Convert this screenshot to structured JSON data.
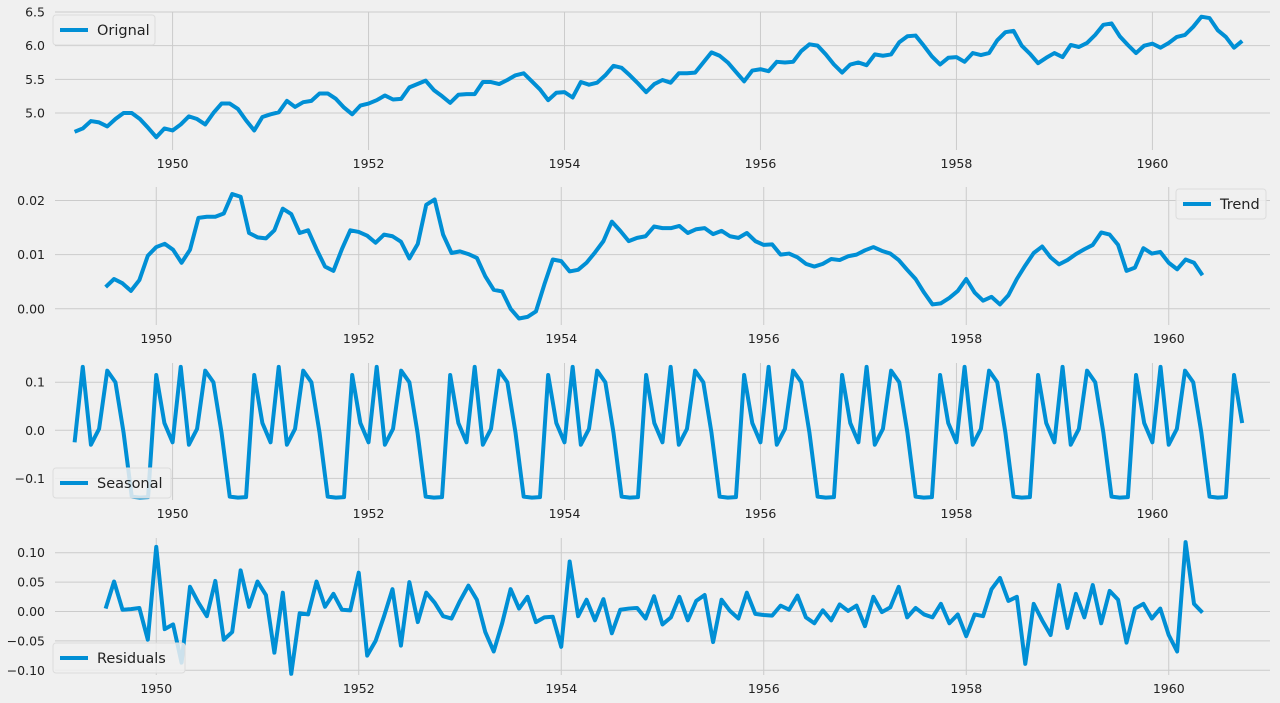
{
  "chart_data": [
    {
      "type": "line",
      "xlim": [
        1948.8,
        1961.2
      ],
      "ylim": [
        4.45,
        6.5
      ],
      "xticks": [
        1950,
        1952,
        1954,
        1956,
        1958,
        1960
      ],
      "xtick_labels": [
        "1950",
        "1952",
        "1954",
        "1956",
        "1958",
        "1960"
      ],
      "yticks": [
        5.0,
        5.5,
        6.0,
        6.5
      ],
      "ytick_labels": [
        "5.0",
        "5.5",
        "6.0",
        "6.5"
      ],
      "grid": true,
      "legend": "upper-left",
      "color": "#008fd5",
      "series": [
        {
          "name": "Orignal",
          "x_start": 1949.0,
          "x_step": 0.08333,
          "values": [
            4.72,
            4.77,
            4.88,
            4.86,
            4.8,
            4.91,
            5.0,
            5.0,
            4.91,
            4.78,
            4.64,
            4.77,
            4.74,
            4.83,
            4.95,
            4.91,
            4.83,
            5.0,
            5.14,
            5.14,
            5.06,
            4.89,
            4.74,
            4.94,
            4.98,
            5.01,
            5.18,
            5.09,
            5.16,
            5.18,
            5.29,
            5.29,
            5.21,
            5.08,
            4.98,
            5.11,
            5.14,
            5.19,
            5.26,
            5.2,
            5.21,
            5.38,
            5.43,
            5.48,
            5.34,
            5.25,
            5.15,
            5.27,
            5.28,
            5.28,
            5.46,
            5.46,
            5.43,
            5.49,
            5.56,
            5.59,
            5.47,
            5.35,
            5.19,
            5.3,
            5.31,
            5.23,
            5.46,
            5.42,
            5.45,
            5.56,
            5.7,
            5.67,
            5.56,
            5.44,
            5.31,
            5.43,
            5.49,
            5.45,
            5.59,
            5.59,
            5.6,
            5.75,
            5.9,
            5.85,
            5.75,
            5.61,
            5.47,
            5.63,
            5.65,
            5.62,
            5.76,
            5.75,
            5.76,
            5.92,
            6.02,
            6.0,
            5.87,
            5.72,
            5.6,
            5.72,
            5.75,
            5.71,
            5.87,
            5.85,
            5.87,
            6.05,
            6.14,
            6.15,
            6.0,
            5.84,
            5.72,
            5.82,
            5.83,
            5.76,
            5.89,
            5.86,
            5.89,
            6.08,
            6.2,
            6.22,
            6.0,
            5.88,
            5.74,
            5.82,
            5.89,
            5.83,
            6.01,
            5.98,
            6.04,
            6.16,
            6.31,
            6.33,
            6.14,
            6.01,
            5.89,
            6.0,
            6.03,
            5.97,
            6.04,
            6.13,
            6.16,
            6.28,
            6.43,
            6.41,
            6.23,
            6.13,
            5.97,
            6.07
          ]
        }
      ]
    },
    {
      "type": "line",
      "xlim": [
        1949.0,
        1961.0
      ],
      "ylim": [
        -0.003,
        0.0225
      ],
      "xticks": [
        1950,
        1952,
        1954,
        1956,
        1958,
        1960
      ],
      "xtick_labels": [
        "1950",
        "1952",
        "1954",
        "1956",
        "1958",
        "1960"
      ],
      "yticks": [
        0.0,
        0.01,
        0.02
      ],
      "ytick_labels": [
        "0.00",
        "0.01",
        "0.02"
      ],
      "grid": true,
      "legend": "upper-right",
      "color": "#008fd5",
      "series": [
        {
          "name": "Trend",
          "x_start": 1949.5,
          "x_step": 0.08333,
          "values": [
            0.004,
            0.0055,
            0.0047,
            0.0033,
            0.0053,
            0.0098,
            0.0114,
            0.012,
            0.0109,
            0.0085,
            0.0109,
            0.0168,
            0.017,
            0.017,
            0.0176,
            0.0212,
            0.0207,
            0.014,
            0.0132,
            0.013,
            0.0145,
            0.0185,
            0.0175,
            0.014,
            0.0145,
            0.011,
            0.0078,
            0.007,
            0.011,
            0.0145,
            0.0142,
            0.0135,
            0.0122,
            0.0137,
            0.0134,
            0.0124,
            0.0093,
            0.012,
            0.0192,
            0.0202,
            0.0137,
            0.0103,
            0.0106,
            0.0101,
            0.0094,
            0.006,
            0.0035,
            0.0032,
            0.0,
            -0.0018,
            -0.0015,
            -0.0005,
            0.0045,
            0.0091,
            0.0088,
            0.0069,
            0.0072,
            0.0085,
            0.0104,
            0.0125,
            0.0161,
            0.0144,
            0.0125,
            0.0131,
            0.0134,
            0.0152,
            0.0149,
            0.0149,
            0.0153,
            0.014,
            0.0147,
            0.0149,
            0.0138,
            0.0144,
            0.0134,
            0.0131,
            0.014,
            0.0125,
            0.0118,
            0.0119,
            0.01,
            0.0102,
            0.0095,
            0.0083,
            0.0078,
            0.0083,
            0.0092,
            0.009,
            0.0097,
            0.01,
            0.0108,
            0.0114,
            0.0107,
            0.0102,
            0.009,
            0.0072,
            0.0055,
            0.003,
            0.0008,
            0.001,
            0.002,
            0.0033,
            0.0055,
            0.003,
            0.0015,
            0.0022,
            0.0008,
            0.0025,
            0.0055,
            0.008,
            0.0103,
            0.0115,
            0.0095,
            0.0082,
            0.009,
            0.0101,
            0.011,
            0.0118,
            0.0141,
            0.0137,
            0.0118,
            0.007,
            0.0076,
            0.0112,
            0.0102,
            0.0105,
            0.0085,
            0.0073,
            0.0091,
            0.0085,
            0.0062
          ]
        }
      ]
    },
    {
      "type": "line",
      "xlim": [
        1948.8,
        1961.2
      ],
      "ylim": [
        -0.145,
        0.14
      ],
      "xticks": [
        1950,
        1952,
        1954,
        1956,
        1958,
        1960
      ],
      "xtick_labels": [
        "1950",
        "1952",
        "1954",
        "1956",
        "1958",
        "1960"
      ],
      "yticks": [
        -0.1,
        0.0,
        0.1
      ],
      "ytick_labels": [
        "−0.1",
        "0.0",
        "0.1"
      ],
      "grid": true,
      "legend": "lower-left",
      "color": "#008fd5",
      "series": [
        {
          "name": "Seasonal",
          "x_start": 1949.0,
          "x_step": 0.08333,
          "pattern": [
            -0.025,
            0.132,
            -0.03,
            0.003,
            0.124,
            0.1,
            -0.005,
            -0.138,
            -0.14,
            -0.139,
            0.115,
            0.015
          ],
          "periods": 12
        }
      ]
    },
    {
      "type": "line",
      "xlim": [
        1949.0,
        1961.0
      ],
      "ylim": [
        -0.108,
        0.125
      ],
      "xticks": [
        1950,
        1952,
        1954,
        1956,
        1958,
        1960
      ],
      "xtick_labels": [
        "1950",
        "1952",
        "1954",
        "1956",
        "1958",
        "1960"
      ],
      "yticks": [
        -0.1,
        -0.05,
        0.0,
        0.05,
        0.1
      ],
      "ytick_labels": [
        "−0.10",
        "−0.05",
        "0.00",
        "0.05",
        "0.10"
      ],
      "grid": true,
      "legend": "lower-left",
      "color": "#008fd5",
      "series": [
        {
          "name": "Residuals",
          "x_start": 1949.5,
          "x_step": 0.08333,
          "values": [
            0.005,
            0.051,
            0.003,
            0.004,
            0.006,
            -0.048,
            0.11,
            -0.03,
            -0.022,
            -0.087,
            0.042,
            0.015,
            -0.008,
            0.052,
            -0.048,
            -0.035,
            0.07,
            0.008,
            0.051,
            0.028,
            -0.07,
            0.032,
            -0.106,
            -0.003,
            -0.005,
            0.051,
            0.008,
            0.03,
            0.003,
            0.002,
            0.066,
            -0.075,
            -0.05,
            -0.008,
            0.038,
            -0.058,
            0.05,
            -0.018,
            0.032,
            0.015,
            -0.008,
            -0.012,
            0.018,
            0.044,
            0.02,
            -0.035,
            -0.068,
            -0.02,
            0.038,
            0.005,
            0.025,
            -0.018,
            -0.01,
            -0.009,
            -0.06,
            0.085,
            -0.008,
            0.02,
            -0.015,
            0.021,
            -0.037,
            0.003,
            0.005,
            0.006,
            -0.012,
            0.026,
            -0.022,
            -0.01,
            0.025,
            -0.015,
            0.018,
            0.028,
            -0.052,
            0.02,
            0.001,
            -0.012,
            0.032,
            -0.004,
            -0.006,
            -0.007,
            0.01,
            0.003,
            0.027,
            -0.01,
            -0.02,
            0.002,
            -0.015,
            0.012,
            0.001,
            0.01,
            -0.025,
            0.025,
            -0.001,
            0.007,
            0.042,
            -0.01,
            0.006,
            -0.005,
            -0.01,
            0.013,
            -0.02,
            -0.005,
            -0.042,
            -0.005,
            -0.008,
            0.038,
            0.057,
            0.018,
            0.025,
            -0.089,
            0.013,
            -0.015,
            -0.04,
            0.045,
            -0.028,
            0.03,
            -0.01,
            0.045,
            -0.02,
            0.035,
            0.02,
            -0.053,
            0.005,
            0.013,
            -0.012,
            0.005,
            -0.04,
            -0.068,
            0.118,
            0.013,
            -0.002
          ]
        }
      ]
    }
  ]
}
